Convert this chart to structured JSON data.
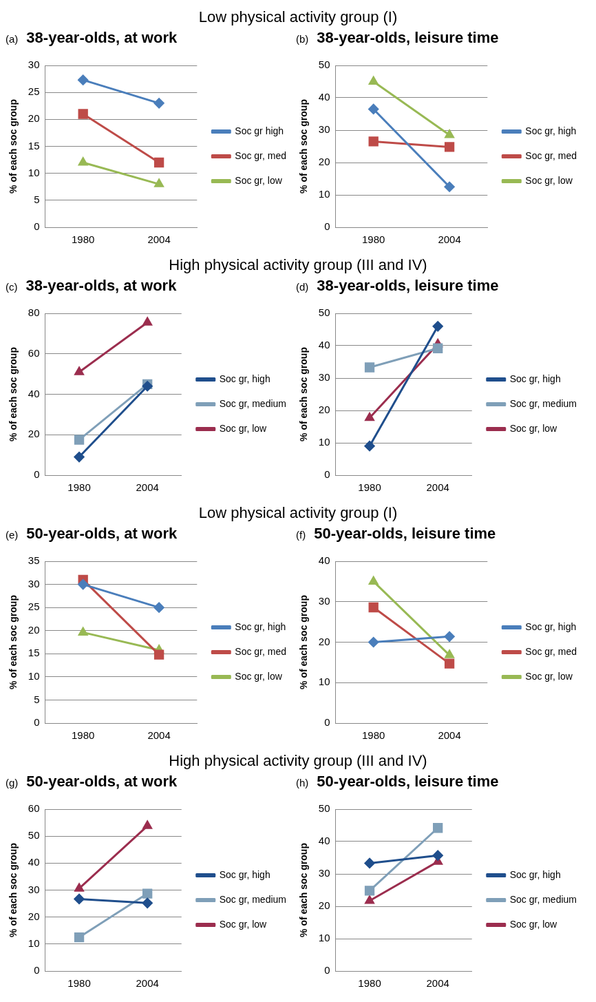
{
  "chart_data": [
    {
      "type": "line",
      "subtitle": "Low physical activity group (I)",
      "title": "38-year-olds, at work",
      "annotations": [
        "(a)"
      ],
      "ylabel": "% of each soc group",
      "categories": [
        "1980",
        "2004"
      ],
      "ylim": [
        0,
        30
      ],
      "yticks": [
        0,
        5,
        10,
        15,
        20,
        25,
        30
      ],
      "grid": "y",
      "legend": "right",
      "series": [
        {
          "name": "Soc gr high",
          "color": "#4a7ebb",
          "marker": "diamond",
          "values": [
            27.3,
            23
          ]
        },
        {
          "name": "Soc gr, med",
          "color": "#be4b48",
          "marker": "square",
          "values": [
            21,
            12
          ]
        },
        {
          "name": "Soc gr, low",
          "color": "#98b954",
          "marker": "triangle",
          "values": [
            12,
            8
          ]
        }
      ]
    },
    {
      "type": "line",
      "title": "38-year-olds, leisure time",
      "annotations": [
        "(b)"
      ],
      "ylabel": "% of each soc group",
      "categories": [
        "1980",
        "2004"
      ],
      "ylim": [
        0,
        50
      ],
      "yticks": [
        0,
        10,
        20,
        30,
        40,
        50
      ],
      "grid": "y",
      "legend": "right",
      "series": [
        {
          "name": "Soc gr, high",
          "color": "#4a7ebb",
          "marker": "diamond",
          "values": [
            36.5,
            12.5
          ]
        },
        {
          "name": "Soc gr, med",
          "color": "#be4b48",
          "marker": "square",
          "values": [
            26.5,
            24.8
          ]
        },
        {
          "name": "Soc gr, low",
          "color": "#98b954",
          "marker": "triangle",
          "values": [
            45,
            28.5
          ]
        }
      ]
    },
    {
      "type": "line",
      "subtitle": "High physical activity group (III and IV)",
      "title": "38-year-olds, at work",
      "annotations": [
        "(c)"
      ],
      "ylabel": "% of each soc group",
      "categories": [
        "1980",
        "2004"
      ],
      "ylim": [
        0,
        80
      ],
      "yticks": [
        0,
        20,
        40,
        60,
        80
      ],
      "grid": "y",
      "legend": "right",
      "series": [
        {
          "name": "Soc gr, high",
          "color": "#1f4e8c",
          "marker": "diamond",
          "values": [
            9,
            44
          ]
        },
        {
          "name": "Soc gr, medium",
          "color": "#7f9fb8",
          "marker": "square",
          "values": [
            17.5,
            45
          ]
        },
        {
          "name": "Soc gr, low",
          "color": "#9b2d4e",
          "marker": "triangle",
          "values": [
            51,
            75.5
          ]
        }
      ]
    },
    {
      "type": "line",
      "title": "38-year-olds, leisure time",
      "annotations": [
        "(d)"
      ],
      "ylabel": "% of each soc group",
      "categories": [
        "1980",
        "2004"
      ],
      "ylim": [
        0,
        50
      ],
      "yticks": [
        0,
        10,
        20,
        30,
        40,
        50
      ],
      "grid": "y",
      "legend": "right",
      "series": [
        {
          "name": "Soc gr, high",
          "color": "#1f4e8c",
          "marker": "diamond",
          "values": [
            9,
            46
          ]
        },
        {
          "name": "Soc gr, medium",
          "color": "#7f9fb8",
          "marker": "square",
          "values": [
            33.3,
            39.2
          ]
        },
        {
          "name": "Soc gr, low",
          "color": "#9b2d4e",
          "marker": "triangle",
          "values": [
            17.7,
            40.5
          ]
        }
      ]
    },
    {
      "type": "line",
      "subtitle": "Low physical activity group (I)",
      "title": "50-year-olds, at work",
      "annotations": [
        "(e)"
      ],
      "ylabel": "% of each soc group",
      "categories": [
        "1980",
        "2004"
      ],
      "ylim": [
        0,
        35
      ],
      "yticks": [
        0,
        5,
        10,
        15,
        20,
        25,
        30,
        35
      ],
      "grid": "y",
      "legend": "right",
      "series": [
        {
          "name": "Soc gr, high",
          "color": "#4a7ebb",
          "marker": "diamond",
          "values": [
            30,
            25
          ]
        },
        {
          "name": "Soc gr, med",
          "color": "#be4b48",
          "marker": "square",
          "values": [
            31,
            14.8
          ]
        },
        {
          "name": "Soc gr, low",
          "color": "#98b954",
          "marker": "triangle",
          "values": [
            19.6,
            15.8
          ]
        }
      ]
    },
    {
      "type": "line",
      "title": "50-year-olds, leisure time",
      "annotations": [
        "(f)"
      ],
      "ylabel": "% of each soc group",
      "categories": [
        "1980",
        "2004"
      ],
      "ylim": [
        0,
        40
      ],
      "yticks": [
        0,
        10,
        20,
        30,
        40
      ],
      "grid": "y",
      "legend": "right",
      "series": [
        {
          "name": "Soc gr, high",
          "color": "#4a7ebb",
          "marker": "diamond",
          "values": [
            20,
            21.4
          ]
        },
        {
          "name": "Soc gr, med",
          "color": "#be4b48",
          "marker": "square",
          "values": [
            28.6,
            14.7
          ]
        },
        {
          "name": "Soc gr, low",
          "color": "#98b954",
          "marker": "triangle",
          "values": [
            35,
            16.8
          ]
        }
      ]
    },
    {
      "type": "line",
      "subtitle": "High physical activity group (III and IV)",
      "title": "50-year-olds, at work",
      "annotations": [
        "(g)"
      ],
      "ylabel": "% of each soc group",
      "categories": [
        "1980",
        "2004"
      ],
      "ylim": [
        0,
        60
      ],
      "yticks": [
        0,
        10,
        20,
        30,
        40,
        50,
        60
      ],
      "grid": "y",
      "legend": "right",
      "series": [
        {
          "name": "Soc gr, high",
          "color": "#1f4e8c",
          "marker": "diamond",
          "values": [
            26.7,
            25.2
          ]
        },
        {
          "name": "Soc gr, medium",
          "color": "#7f9fb8",
          "marker": "square",
          "values": [
            12.5,
            28.7
          ]
        },
        {
          "name": "Soc gr, low",
          "color": "#9b2d4e",
          "marker": "triangle",
          "values": [
            30.6,
            53.8
          ]
        }
      ]
    },
    {
      "type": "line",
      "title": "50-year-olds, leisure time",
      "annotations": [
        "(h)"
      ],
      "ylabel": "% of each soc group",
      "categories": [
        "1980",
        "2004"
      ],
      "ylim": [
        0,
        50
      ],
      "yticks": [
        0,
        10,
        20,
        30,
        40,
        50
      ],
      "grid": "y",
      "legend": "right",
      "series": [
        {
          "name": "Soc gr, high",
          "color": "#1f4e8c",
          "marker": "diamond",
          "values": [
            33.3,
            35.7
          ]
        },
        {
          "name": "Soc gr, medium",
          "color": "#7f9fb8",
          "marker": "square",
          "values": [
            24.8,
            44.2
          ]
        },
        {
          "name": "Soc gr, low",
          "color": "#9b2d4e",
          "marker": "triangle",
          "values": [
            21.7,
            33.8
          ]
        }
      ]
    }
  ]
}
